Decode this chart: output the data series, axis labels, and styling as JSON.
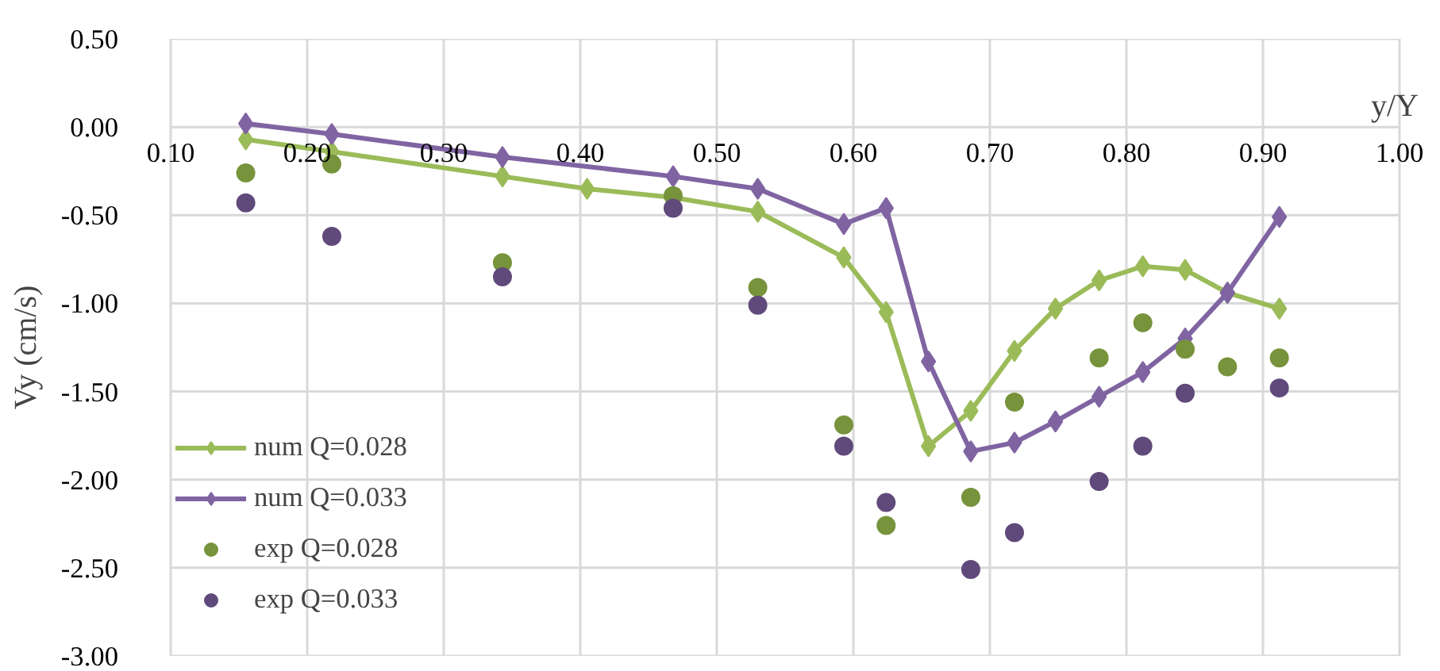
{
  "chart_data": {
    "type": "line",
    "xlabel": "y/Y",
    "ylabel": "Vy (cm/s)",
    "xlim": [
      0.1,
      1.0
    ],
    "xticks": [
      {
        "value": 0.1,
        "label": "0.10"
      },
      {
        "value": 0.2,
        "label": "0.20"
      },
      {
        "value": 0.3,
        "label": "0.30"
      },
      {
        "value": 0.4,
        "label": "0.40"
      },
      {
        "value": 0.5,
        "label": "0.50"
      },
      {
        "value": 0.6,
        "label": "0.60"
      },
      {
        "value": 0.7,
        "label": "0.70"
      },
      {
        "value": 0.8,
        "label": "0.80"
      },
      {
        "value": 0.9,
        "label": "0.90"
      },
      {
        "value": 1.0,
        "label": "1.00"
      }
    ],
    "ylim": [
      -3.0,
      0.5
    ],
    "yticks": [
      {
        "value": 0.5,
        "label": "0.50"
      },
      {
        "value": 0.0,
        "label": "0.00"
      },
      {
        "value": -0.5,
        "label": "-0.50"
      },
      {
        "value": -1.0,
        "label": "-1.00"
      },
      {
        "value": -1.5,
        "label": "-1.50"
      },
      {
        "value": -2.0,
        "label": "-2.00"
      },
      {
        "value": -2.5,
        "label": "-2.50"
      },
      {
        "value": -3.0,
        "label": "-3.00"
      }
    ],
    "grid": true,
    "legend": "bottom left",
    "line_style": "solid",
    "series": [
      {
        "name": "num Q=0.028",
        "marker": "diamond",
        "color": "#9bbb59",
        "x": [
          0.155,
          0.218,
          0.343,
          0.405,
          0.468,
          0.53,
          0.593,
          0.624,
          0.655,
          0.686,
          0.718,
          0.748,
          0.78,
          0.812,
          0.843,
          0.874,
          0.912
        ],
        "values": [
          -0.07,
          -0.14,
          -0.28,
          -0.35,
          -0.4,
          -0.48,
          -0.74,
          -1.05,
          -1.81,
          -1.61,
          -1.27,
          -1.03,
          -0.87,
          -0.79,
          -0.81,
          -0.94,
          -1.03
        ]
      },
      {
        "name": "num Q=0.033",
        "marker": "diamond",
        "color": "#8064a2",
        "x": [
          0.155,
          0.218,
          0.343,
          0.468,
          0.53,
          0.593,
          0.624,
          0.655,
          0.686,
          0.718,
          0.748,
          0.78,
          0.812,
          0.843,
          0.874,
          0.912
        ],
        "values": [
          0.02,
          -0.04,
          -0.17,
          -0.28,
          -0.35,
          -0.55,
          -0.46,
          -1.33,
          -1.84,
          -1.79,
          -1.67,
          -1.53,
          -1.39,
          -1.2,
          -0.94,
          -0.51
        ]
      },
      {
        "name": "exp Q=0.028",
        "type": "scatter",
        "marker": "circle",
        "color": "#77933c",
        "x": [
          0.155,
          0.218,
          0.343,
          0.468,
          0.53,
          0.593,
          0.624,
          0.686,
          0.718,
          0.78,
          0.812,
          0.843,
          0.874,
          0.912
        ],
        "values": [
          -0.26,
          -0.21,
          -0.77,
          -0.39,
          -0.91,
          -1.69,
          -2.26,
          -2.1,
          -1.56,
          -1.31,
          -1.11,
          -1.26,
          -1.36,
          -1.31
        ]
      },
      {
        "name": "exp Q=0.033",
        "type": "scatter",
        "marker": "circle",
        "color": "#604a7b",
        "x": [
          0.155,
          0.218,
          0.343,
          0.468,
          0.53,
          0.593,
          0.624,
          0.686,
          0.718,
          0.78,
          0.812,
          0.843,
          0.912
        ],
        "values": [
          -0.43,
          -0.62,
          -0.85,
          -0.46,
          -1.01,
          -1.81,
          -2.13,
          -2.51,
          -2.3,
          -2.01,
          -1.81,
          -1.51,
          -1.48
        ]
      }
    ]
  }
}
